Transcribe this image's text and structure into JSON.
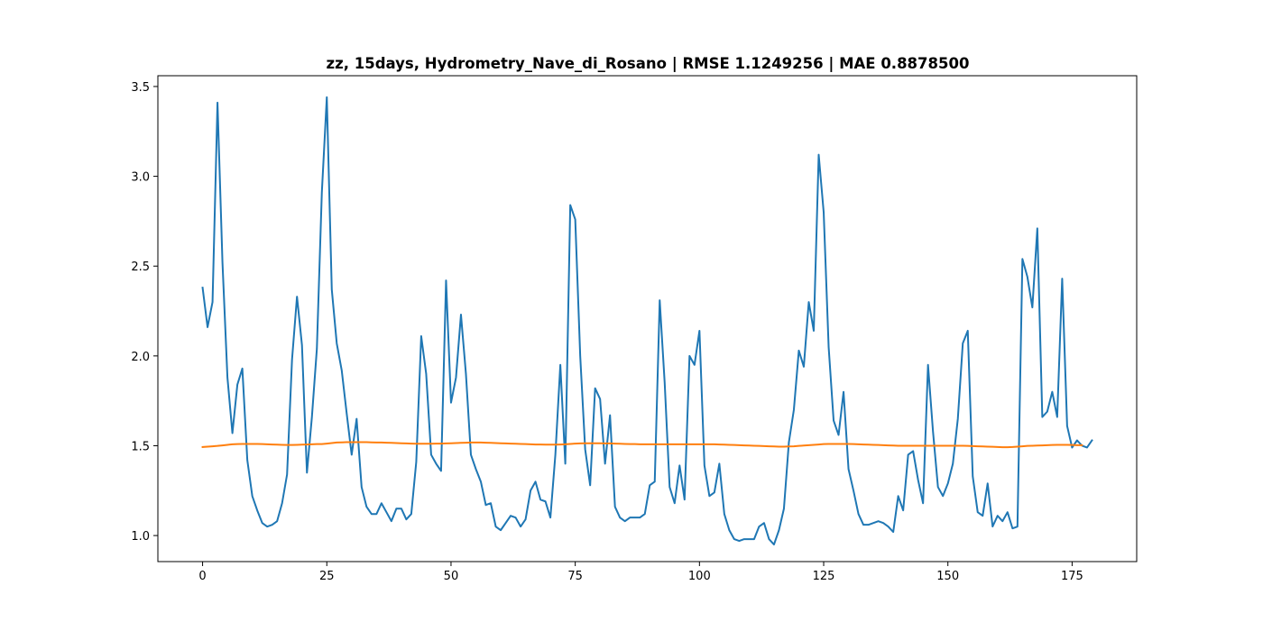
{
  "chart_data": {
    "type": "line",
    "title": "zz, 15days, Hydrometry_Nave_di_Rosano | RMSE 1.1249256 | MAE 0.8878500",
    "xlabel": "",
    "ylabel": "",
    "xlim": [
      -9,
      188
    ],
    "ylim": [
      0.855,
      3.56
    ],
    "xticks": [
      0,
      25,
      50,
      75,
      100,
      125,
      150,
      175
    ],
    "yticks": [
      1.0,
      1.5,
      2.0,
      2.5,
      3.0,
      3.5
    ],
    "ytick_labels": [
      "1.0",
      "1.5",
      "2.0",
      "2.5",
      "3.0",
      "3.5"
    ],
    "grid": false,
    "legend": "none",
    "series": [
      {
        "color": "#1f77b4",
        "values": [
          2.38,
          2.16,
          2.3,
          3.41,
          2.52,
          1.88,
          1.57,
          1.84,
          1.93,
          1.42,
          1.22,
          1.14,
          1.07,
          1.05,
          1.06,
          1.08,
          1.18,
          1.34,
          1.98,
          2.33,
          2.06,
          1.35,
          1.66,
          2.04,
          2.91,
          3.44,
          2.37,
          2.07,
          1.92,
          1.68,
          1.45,
          1.65,
          1.27,
          1.16,
          1.12,
          1.12,
          1.18,
          1.13,
          1.08,
          1.15,
          1.15,
          1.09,
          1.12,
          1.41,
          2.11,
          1.9,
          1.45,
          1.4,
          1.36,
          2.42,
          1.74,
          1.88,
          2.23,
          1.9,
          1.45,
          1.37,
          1.3,
          1.17,
          1.18,
          1.05,
          1.03,
          1.07,
          1.11,
          1.1,
          1.05,
          1.09,
          1.25,
          1.3,
          1.2,
          1.19,
          1.1,
          1.45,
          1.95,
          1.4,
          2.84,
          2.76,
          2.0,
          1.48,
          1.28,
          1.82,
          1.76,
          1.4,
          1.67,
          1.16,
          1.1,
          1.08,
          1.1,
          1.1,
          1.1,
          1.12,
          1.28,
          1.3,
          2.31,
          1.85,
          1.27,
          1.18,
          1.39,
          1.2,
          2.0,
          1.95,
          2.14,
          1.39,
          1.22,
          1.24,
          1.4,
          1.12,
          1.03,
          0.98,
          0.97,
          0.98,
          0.98,
          0.98,
          1.05,
          1.07,
          0.98,
          0.95,
          1.03,
          1.15,
          1.52,
          1.7,
          2.03,
          1.94,
          2.3,
          2.14,
          3.12,
          2.8,
          2.05,
          1.64,
          1.56,
          1.8,
          1.37,
          1.25,
          1.12,
          1.06,
          1.06,
          1.07,
          1.08,
          1.07,
          1.05,
          1.02,
          1.22,
          1.14,
          1.45,
          1.47,
          1.31,
          1.18,
          1.95,
          1.58,
          1.27,
          1.22,
          1.29,
          1.4,
          1.65,
          2.07,
          2.14,
          1.33,
          1.13,
          1.11,
          1.29,
          1.05,
          1.11,
          1.08,
          1.13,
          1.04,
          1.05,
          2.54,
          2.44,
          2.27,
          2.71,
          1.66,
          1.69,
          1.8,
          1.66,
          2.43,
          1.61,
          1.49,
          1.53,
          1.5,
          1.49,
          1.53
        ]
      },
      {
        "color": "#ff7f0e",
        "values": [
          1.493,
          1.495,
          1.497,
          1.499,
          1.502,
          1.505,
          1.508,
          1.509,
          1.51,
          1.51,
          1.51,
          1.51,
          1.509,
          1.508,
          1.507,
          1.506,
          1.505,
          1.504,
          1.504,
          1.505,
          1.506,
          1.507,
          1.508,
          1.509,
          1.509,
          1.512,
          1.515,
          1.518,
          1.519,
          1.52,
          1.52,
          1.52,
          1.52,
          1.52,
          1.519,
          1.518,
          1.518,
          1.517,
          1.516,
          1.515,
          1.514,
          1.513,
          1.512,
          1.511,
          1.511,
          1.511,
          1.511,
          1.512,
          1.512,
          1.513,
          1.514,
          1.515,
          1.516,
          1.517,
          1.518,
          1.518,
          1.518,
          1.517,
          1.516,
          1.515,
          1.514,
          1.513,
          1.512,
          1.511,
          1.51,
          1.509,
          1.508,
          1.507,
          1.507,
          1.506,
          1.506,
          1.506,
          1.507,
          1.508,
          1.51,
          1.512,
          1.513,
          1.514,
          1.514,
          1.514,
          1.514,
          1.513,
          1.513,
          1.512,
          1.511,
          1.51,
          1.509,
          1.509,
          1.508,
          1.508,
          1.508,
          1.508,
          1.508,
          1.508,
          1.508,
          1.508,
          1.508,
          1.508,
          1.508,
          1.508,
          1.508,
          1.508,
          1.508,
          1.508,
          1.507,
          1.506,
          1.505,
          1.504,
          1.503,
          1.502,
          1.501,
          1.5,
          1.499,
          1.498,
          1.497,
          1.496,
          1.495,
          1.495,
          1.496,
          1.497,
          1.499,
          1.501,
          1.503,
          1.505,
          1.507,
          1.509,
          1.51,
          1.51,
          1.51,
          1.51,
          1.51,
          1.509,
          1.508,
          1.507,
          1.506,
          1.505,
          1.504,
          1.503,
          1.502,
          1.501,
          1.5,
          1.5,
          1.5,
          1.5,
          1.5,
          1.5,
          1.5,
          1.5,
          1.5,
          1.5,
          1.5,
          1.5,
          1.5,
          1.5,
          1.499,
          1.498,
          1.497,
          1.496,
          1.495,
          1.494,
          1.493,
          1.492,
          1.492,
          1.493,
          1.495,
          1.497,
          1.499,
          1.5,
          1.501,
          1.502,
          1.503,
          1.504,
          1.505,
          1.505,
          1.505,
          1.504,
          1.503,
          1.503
        ]
      }
    ]
  }
}
